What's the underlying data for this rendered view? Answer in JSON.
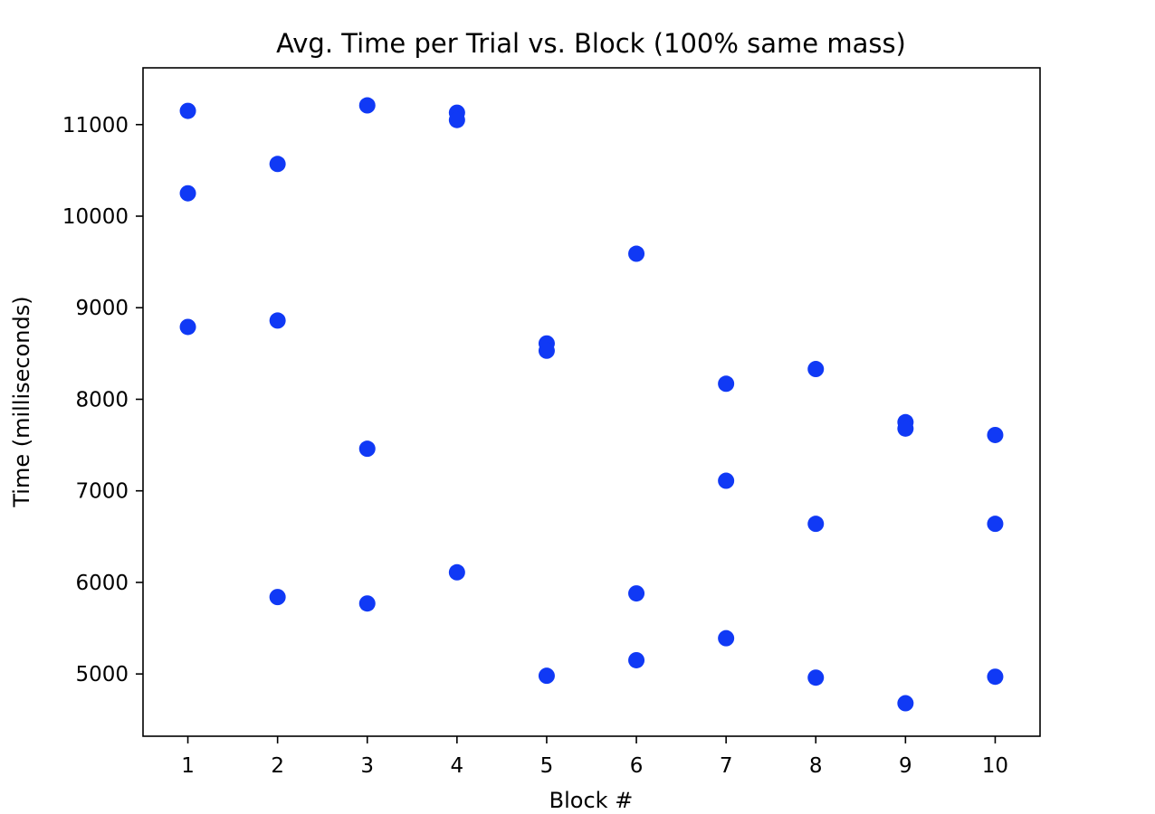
{
  "chart_data": {
    "type": "scatter",
    "title": "Avg. Time per Trial vs. Block (100% same mass)",
    "xlabel": "Block #",
    "ylabel": "Time (milliseconds)",
    "xlim": [
      0.5,
      10.5
    ],
    "ylim": [
      4320,
      11620
    ],
    "x_ticks": [
      1,
      2,
      3,
      4,
      5,
      6,
      7,
      8,
      9,
      10
    ],
    "y_ticks": [
      5000,
      6000,
      7000,
      8000,
      9000,
      10000,
      11000
    ],
    "grid": false,
    "legend": "none",
    "marker_color": "#1039f5",
    "series": [
      {
        "points": [
          {
            "x": 1,
            "y": 11150
          },
          {
            "x": 1,
            "y": 10250
          },
          {
            "x": 1,
            "y": 8790
          },
          {
            "x": 2,
            "y": 10570
          },
          {
            "x": 2,
            "y": 8860
          },
          {
            "x": 2,
            "y": 5840
          },
          {
            "x": 3,
            "y": 11210
          },
          {
            "x": 3,
            "y": 7460
          },
          {
            "x": 3,
            "y": 5770
          },
          {
            "x": 4,
            "y": 11130
          },
          {
            "x": 4,
            "y": 11050
          },
          {
            "x": 4,
            "y": 6110
          },
          {
            "x": 5,
            "y": 8610
          },
          {
            "x": 5,
            "y": 8530
          },
          {
            "x": 5,
            "y": 4980
          },
          {
            "x": 6,
            "y": 9590
          },
          {
            "x": 6,
            "y": 5880
          },
          {
            "x": 6,
            "y": 5150
          },
          {
            "x": 7,
            "y": 8170
          },
          {
            "x": 7,
            "y": 7110
          },
          {
            "x": 7,
            "y": 5390
          },
          {
            "x": 8,
            "y": 8330
          },
          {
            "x": 8,
            "y": 6640
          },
          {
            "x": 8,
            "y": 4960
          },
          {
            "x": 9,
            "y": 7750
          },
          {
            "x": 9,
            "y": 7680
          },
          {
            "x": 9,
            "y": 4680
          },
          {
            "x": 10,
            "y": 7610
          },
          {
            "x": 10,
            "y": 6640
          },
          {
            "x": 10,
            "y": 4970
          }
        ]
      }
    ]
  }
}
